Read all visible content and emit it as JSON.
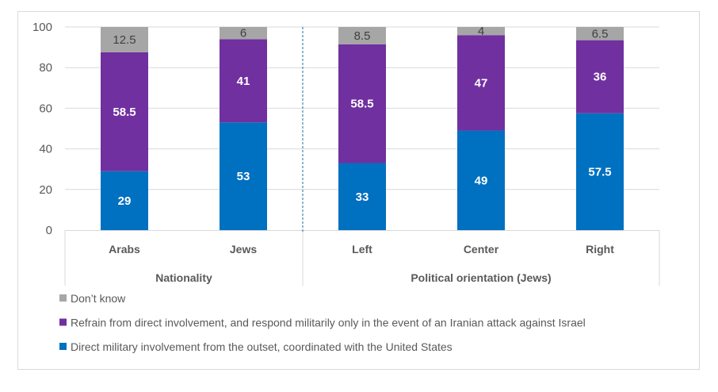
{
  "chart_data": {
    "type": "bar",
    "stacked": true,
    "title": "",
    "xlabel": "",
    "ylabel": "",
    "ylim": [
      0,
      100
    ],
    "yticks": [
      0,
      20,
      40,
      60,
      80,
      100
    ],
    "grid": true,
    "legend_position": "bottom-left",
    "categories": [
      "Arabs",
      "Jews",
      "Left",
      "Center",
      "Right"
    ],
    "groups": [
      {
        "label": "Nationality",
        "categories": [
          "Arabs",
          "Jews"
        ]
      },
      {
        "label": "Political orientation (Jews)",
        "categories": [
          "Left",
          "Center",
          "Right"
        ]
      }
    ],
    "series": [
      {
        "name": "Direct military involvement from the outset, coordinated with the United States",
        "color": "#0070C0",
        "values": [
          29,
          53,
          33,
          49,
          57.5
        ]
      },
      {
        "name": "Refrain from direct involvement, and respond militarily only in the event of an Iranian attack against Israel",
        "color": "#7030A0",
        "values": [
          58.5,
          41,
          58.5,
          47,
          36
        ]
      },
      {
        "name": "Don’t know",
        "color": "#A6A6A6",
        "values": [
          12.5,
          6,
          8.5,
          4,
          6.5
        ]
      }
    ],
    "legend_order": [
      2,
      1,
      0
    ]
  }
}
